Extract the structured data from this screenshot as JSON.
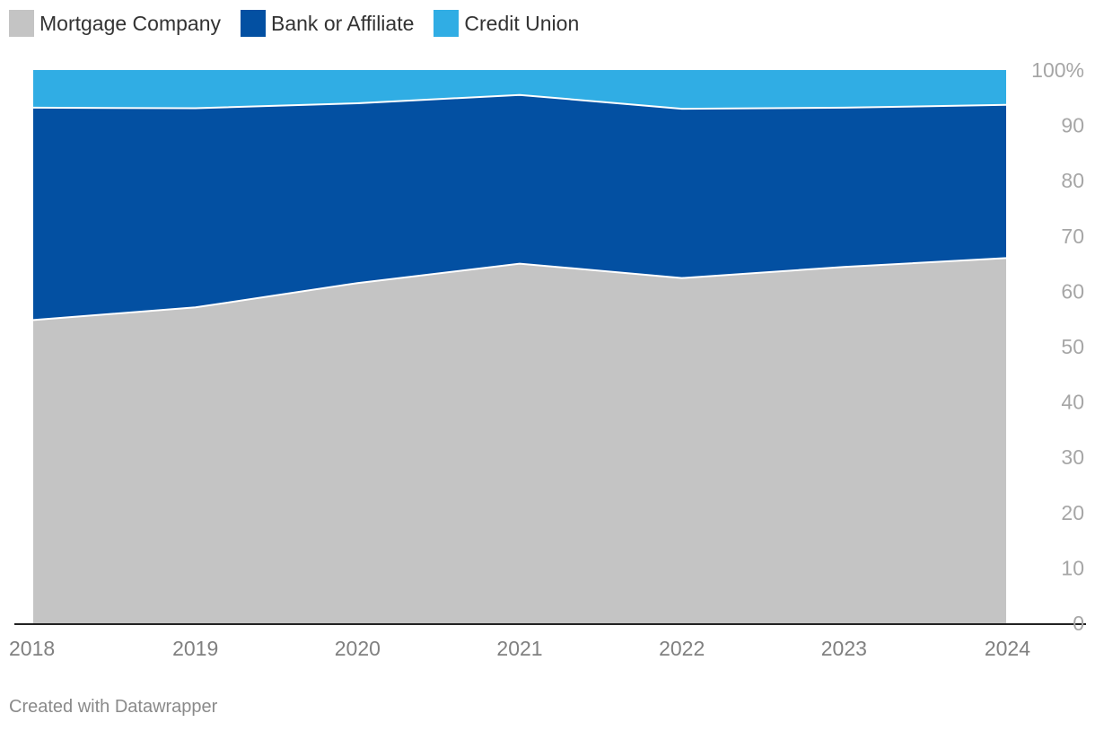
{
  "chart_data": {
    "type": "area",
    "stacked": true,
    "categories": [
      "2018",
      "2019",
      "2020",
      "2021",
      "2022",
      "2023",
      "2024"
    ],
    "series": [
      {
        "name": "Mortgage Company",
        "color": "#c4c4c4",
        "values": [
          54.8,
          57.1,
          61.5,
          65.0,
          62.4,
          64.4,
          66.0
        ]
      },
      {
        "name": "Bank or Affiliate",
        "color": "#0350a2",
        "values": [
          38.4,
          36.0,
          32.5,
          30.5,
          30.6,
          28.8,
          27.7
        ]
      },
      {
        "name": "Credit Union",
        "color": "#30ade4",
        "values": [
          6.8,
          6.9,
          6.0,
          4.5,
          7.0,
          6.8,
          6.3
        ]
      }
    ],
    "ylim": [
      0,
      100
    ],
    "yticks": [
      0,
      10,
      20,
      30,
      40,
      50,
      60,
      70,
      80,
      90,
      100
    ],
    "y_top_label": "100%",
    "y_axis_position": "right",
    "grid": false,
    "legend_position": "top-left",
    "xlabel": "",
    "ylabel": ""
  },
  "footer": {
    "credit": "Created with Datawrapper"
  }
}
